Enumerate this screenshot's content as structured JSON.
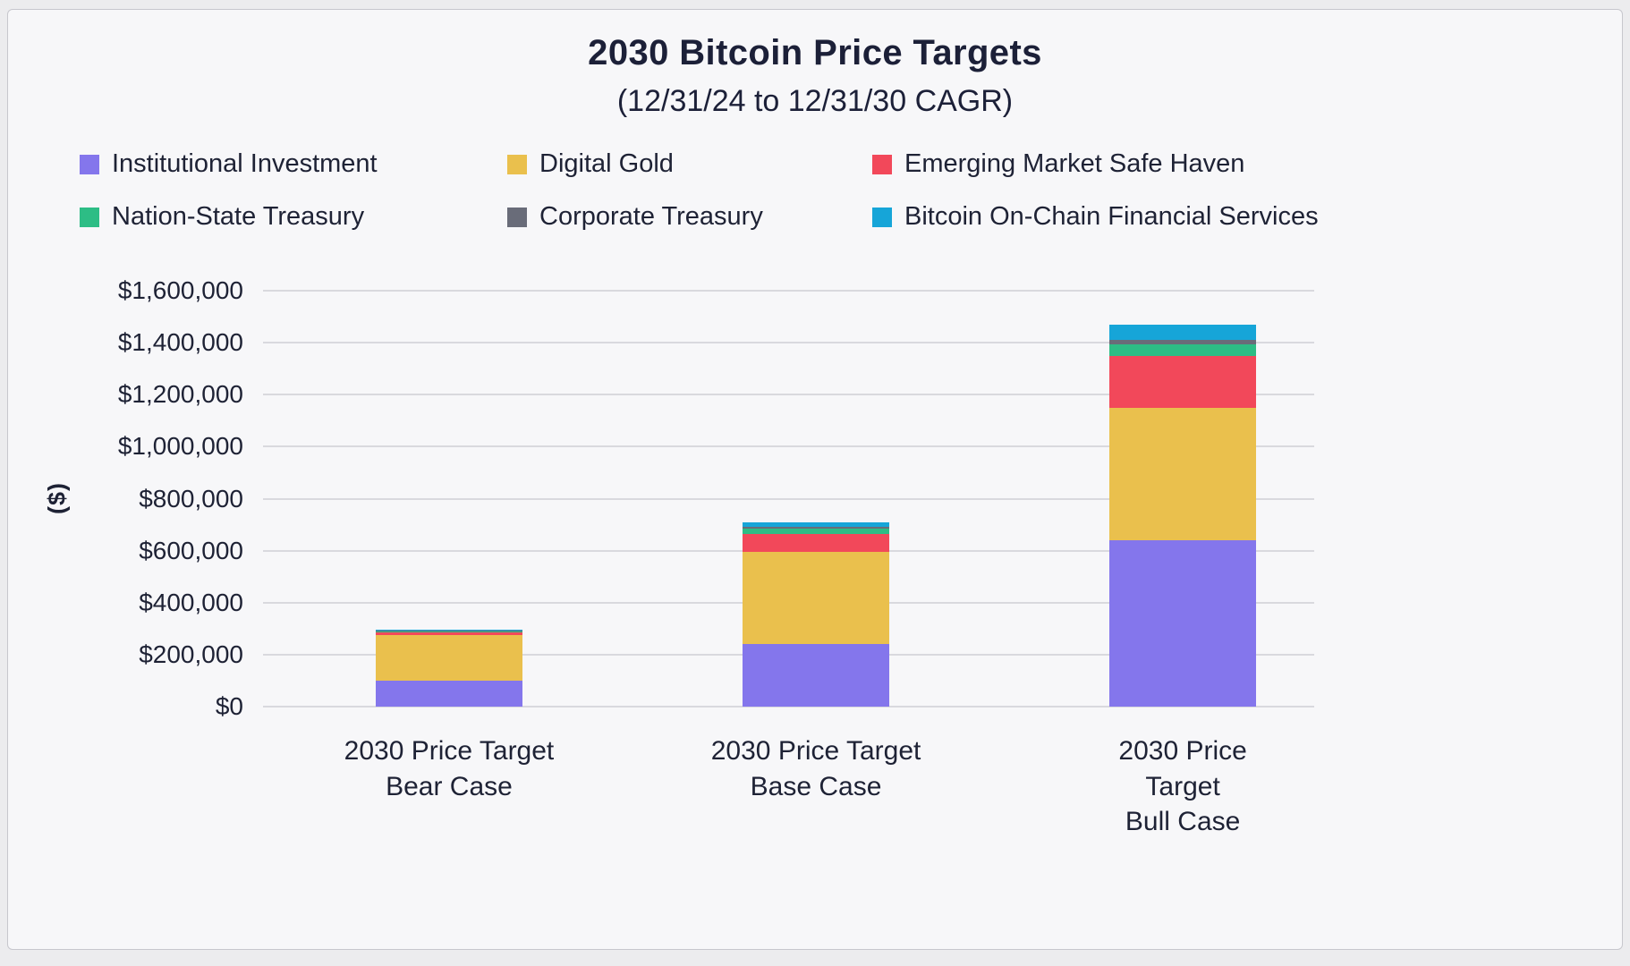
{
  "chart_data": {
    "type": "bar",
    "stacked": true,
    "title": "2030 Bitcoin Price Targets",
    "subtitle": "(12/31/24 to 12/31/30 CAGR)",
    "ylabel": "($)",
    "xlabel": "",
    "ylim": [
      0,
      1600000
    ],
    "ytick_step": 200000,
    "ytick_labels": [
      "$0",
      "$200,000",
      "$400,000",
      "$600,000",
      "$800,000",
      "$1,000,000",
      "$1,200,000",
      "$1,400,000",
      "$1,600,000"
    ],
    "grid": true,
    "legend_position": "top",
    "categories": [
      "2030 Price Target\nBear Case",
      "2030 Price Target\nBase Case",
      "2030 Price Target\nBull Case"
    ],
    "category_totals": [
      295000,
      710000,
      1470000
    ],
    "series": [
      {
        "name": "Institutional Investment",
        "color": "#8476ec",
        "values": [
          100000,
          240000,
          640000
        ]
      },
      {
        "name": "Digital Gold",
        "color": "#eac04d",
        "values": [
          175000,
          355000,
          510000
        ]
      },
      {
        "name": "Emerging Market Safe Haven",
        "color": "#f2485a",
        "values": [
          12000,
          70000,
          200000
        ]
      },
      {
        "name": "Nation-State Treasury",
        "color": "#2dbd85",
        "values": [
          3000,
          20000,
          45000
        ]
      },
      {
        "name": "Corporate Treasury",
        "color": "#696c79",
        "values": [
          2000,
          8000,
          15000
        ]
      },
      {
        "name": "Bitcoin On-Chain Financial Services",
        "color": "#16a5d8",
        "values": [
          3000,
          17000,
          60000
        ]
      }
    ]
  }
}
